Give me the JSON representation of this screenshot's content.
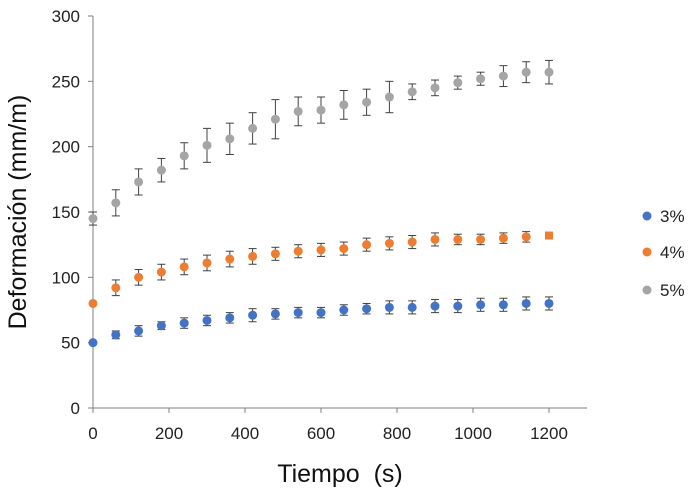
{
  "chart_data": {
    "type": "scatter",
    "xlabel": "Tiempo  (s)",
    "ylabel": "Deformación (mm/m)",
    "xlim": [
      0,
      1300
    ],
    "ylim": [
      0,
      300
    ],
    "xticks": [
      "0",
      "200",
      "400",
      "600",
      "800",
      "1000",
      "1200"
    ],
    "yticks": [
      "0",
      "50",
      "100",
      "150",
      "200",
      "250",
      "300"
    ],
    "grid": false,
    "legend_position": "right",
    "x": [
      0,
      60,
      120,
      180,
      240,
      300,
      360,
      420,
      480,
      540,
      600,
      660,
      720,
      780,
      840,
      900,
      960,
      1020,
      1080,
      1140,
      1200
    ],
    "series": [
      {
        "name": "3%",
        "color": "#4472C4",
        "values": [
          50,
          56,
          59,
          63,
          65,
          67,
          69,
          71,
          72,
          73,
          73,
          75,
          76,
          77,
          77,
          78,
          78,
          79,
          79,
          80,
          80
        ],
        "error": [
          0,
          3,
          4,
          3,
          4,
          4,
          4,
          5,
          4,
          4,
          4,
          4,
          4,
          5,
          5,
          5,
          5,
          5,
          5,
          5,
          5
        ]
      },
      {
        "name": "4%",
        "color": "#ED7D31",
        "values": [
          80,
          92,
          100,
          104,
          108,
          111,
          114,
          116,
          118,
          120,
          121,
          122,
          125,
          126,
          127,
          129,
          129,
          129,
          130,
          131,
          132
        ],
        "error": [
          0,
          6,
          6,
          6,
          6,
          6,
          6,
          6,
          5,
          5,
          5,
          5,
          5,
          5,
          5,
          5,
          4,
          4,
          4,
          4,
          0
        ]
      },
      {
        "name": "5%",
        "color": "#A5A5A5",
        "values": [
          145,
          157,
          173,
          182,
          193,
          201,
          206,
          214,
          221,
          227,
          228,
          232,
          234,
          238,
          242,
          245,
          249,
          252,
          254,
          257,
          257
        ],
        "error": [
          5,
          10,
          10,
          9,
          10,
          13,
          12,
          12,
          15,
          11,
          10,
          11,
          10,
          12,
          6,
          6,
          5,
          5,
          8,
          8,
          9
        ]
      }
    ]
  }
}
